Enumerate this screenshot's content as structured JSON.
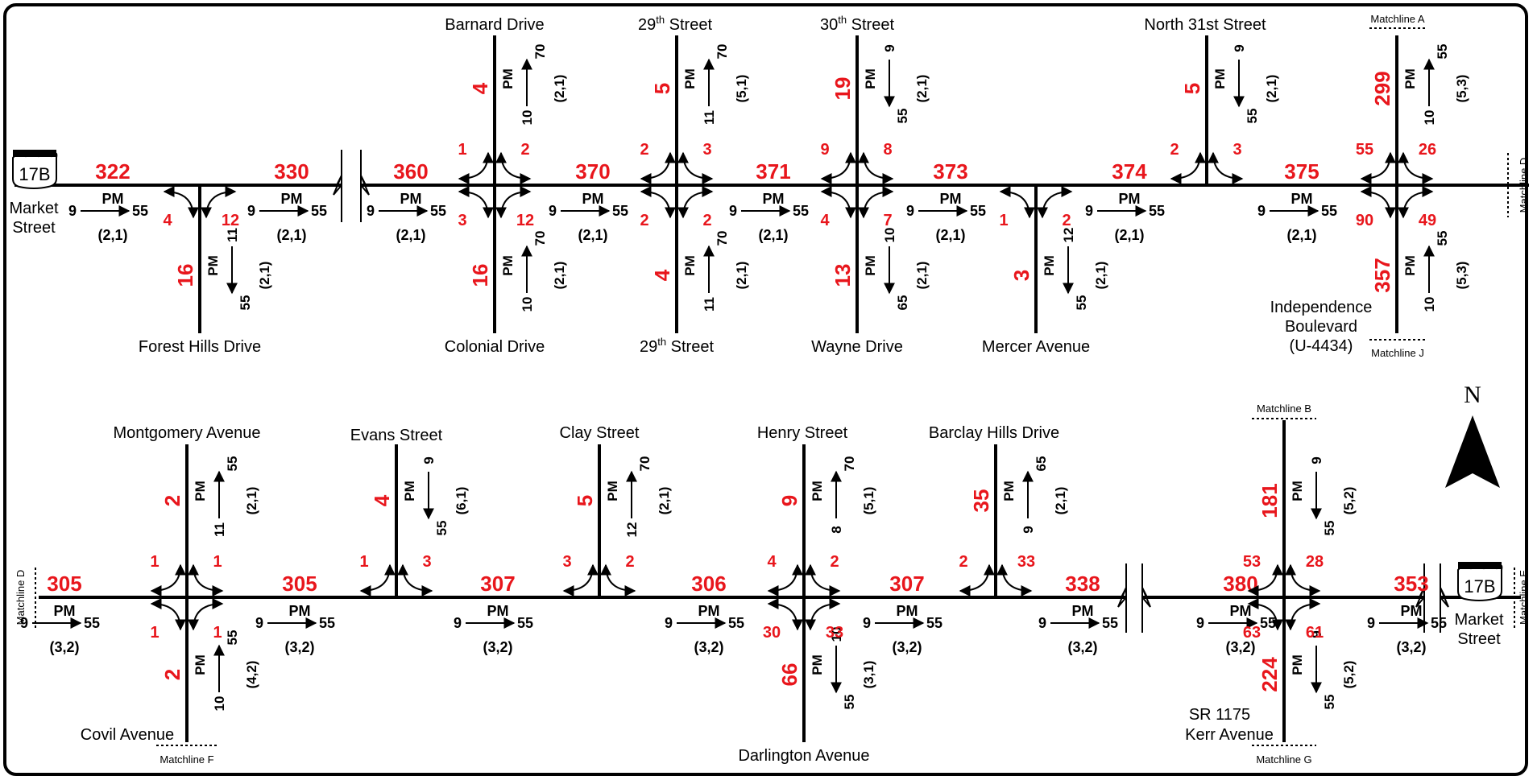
{
  "north_label": "N",
  "shield_label": "17B",
  "market_street": [
    "Market",
    "Street"
  ],
  "pm": "PM",
  "mainline_values": {
    "top": [
      "322",
      "330",
      "360",
      "370",
      "371",
      "373",
      "374",
      "375"
    ],
    "bottom": [
      "305",
      "305",
      "307",
      "306",
      "307",
      "338",
      "380",
      "353"
    ]
  },
  "mainline_dir": {
    "top_ratio": "(2,1)",
    "bottom_ratio": "(3,2)",
    "d": "9",
    "k": "55"
  },
  "streets_top_north": [
    "Barnard Drive",
    "29",
    "30",
    "North 31st Street"
  ],
  "streets_top_north_sup": [
    "th",
    "th"
  ],
  "streets_top_south": [
    "Forest Hills Drive",
    "Colonial Drive",
    "29",
    "Wayne Drive",
    "Mercer Avenue"
  ],
  "street_suffix": " Street",
  "independence": [
    "Independence",
    "Boulevard",
    "(U-4434)"
  ],
  "streets_bottom_north": [
    "Montgomery Avenue",
    "Evans Street",
    "Clay Street",
    "Henry Street",
    "Barclay Hills Drive"
  ],
  "streets_bottom_south": [
    "Covil Avenue",
    "Darlington Avenue"
  ],
  "kerr": [
    "SR 1175",
    "Kerr Avenue"
  ],
  "matchlines": [
    "Matchline A",
    "Matchline D",
    "Matchline J",
    "Matchline B",
    "Matchline D",
    "Matchline E",
    "Matchline F",
    "Matchline G"
  ],
  "top_side_volumes": [
    "4",
    "5",
    "19",
    "5",
    "299",
    "16",
    "16",
    "4",
    "13",
    "3",
    "357"
  ],
  "top_side_d": [
    "10",
    "11",
    "9",
    "9",
    "10",
    "11",
    "10",
    "11",
    "10",
    "12",
    "10"
  ],
  "top_side_k": [
    "70",
    "70",
    "55",
    "55",
    "55",
    "55",
    "70",
    "70",
    "65",
    "55",
    "55"
  ],
  "top_side_ratio": [
    "(2,1)",
    "(5,1)",
    "(2,1)",
    "(2,1)",
    "(5,3)",
    "(2,1)",
    "(2,1)",
    "(2,1)",
    "(2,1)",
    "(2,1)",
    "(5,3)"
  ],
  "top_turns": [
    "4",
    "12",
    "1",
    "2",
    "3",
    "12",
    "2",
    "3",
    "2",
    "2",
    "9",
    "8",
    "4",
    "7",
    "1",
    "2",
    "2",
    "3",
    "55",
    "26",
    "90",
    "49"
  ],
  "bottom_side_volumes": [
    "2",
    "4",
    "5",
    "9",
    "35",
    "181",
    "2",
    "66",
    "224"
  ],
  "bottom_side_d": [
    "11",
    "9",
    "12",
    "8",
    "9",
    "9",
    "10",
    "10",
    "9"
  ],
  "bottom_side_k": [
    "55",
    "55",
    "70",
    "70",
    "65",
    "55",
    "55",
    "55",
    "55"
  ],
  "bottom_side_ratio": [
    "(2,1)",
    "(6,1)",
    "(2,1)",
    "(5,1)",
    "(2,1)",
    "(5,2)",
    "(4,2)",
    "(3,1)",
    "(5,2)"
  ],
  "bottom_turns": [
    "1",
    "1",
    "1",
    "1",
    "1",
    "3",
    "3",
    "2",
    "4",
    "2",
    "30",
    "33",
    "2",
    "33",
    "53",
    "28",
    "63",
    "61"
  ]
}
